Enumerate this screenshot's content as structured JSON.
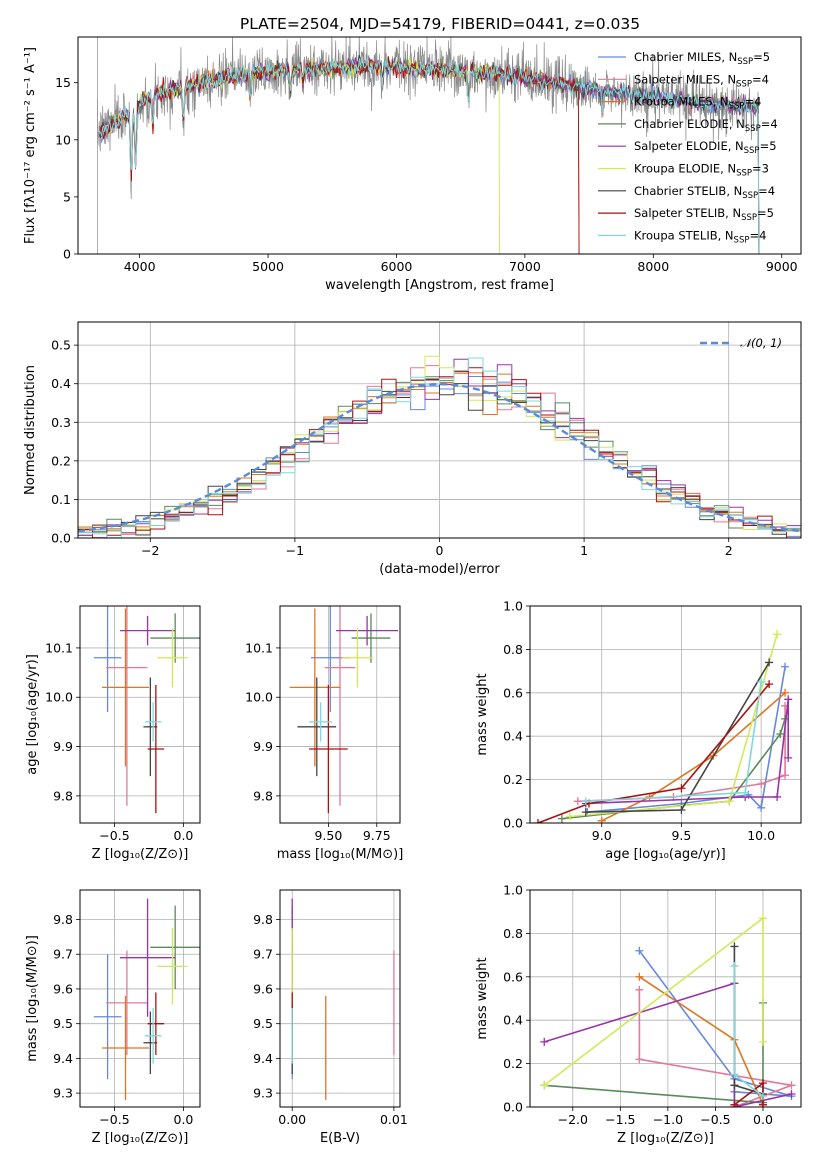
{
  "figure_title": "PLATE=2504, MJD=54179, FIBERID=0441, z=0.035",
  "palette": [
    "#6688dd",
    "#e37898",
    "#e07520",
    "#5a8a5a",
    "#9933aa",
    "#d3e858",
    "#444444",
    "#aa1111",
    "#7fd8dc"
  ],
  "chart_data": [
    {
      "type": "line",
      "panel": "spectrum",
      "xlabel": "wavelength [Angstrom, rest frame]",
      "ylabel": "Flux [fλ10⁻¹⁷ erg cm⁻² s⁻¹ A⁻¹]",
      "xlim": [
        3520,
        9150
      ],
      "ylim": [
        0,
        19
      ],
      "xticks": [
        "4000",
        "5000",
        "6000",
        "7000",
        "8000",
        "9000"
      ],
      "yticks": [
        "0",
        "5",
        "10",
        "15"
      ],
      "data_outline": {
        "x": [
          3670,
          3800,
          3950,
          4100,
          4300,
          4500,
          4700,
          5000,
          5300,
          5600,
          5900,
          6200,
          6500,
          6800,
          7000,
          7300,
          7600,
          8000,
          8400,
          8800
        ],
        "y": [
          10.5,
          11.5,
          12.5,
          14.0,
          14.5,
          15.0,
          15.5,
          16.0,
          16.2,
          16.4,
          16.5,
          16.2,
          16.0,
          15.8,
          15.4,
          14.9,
          14.3,
          13.8,
          13.2,
          12.8
        ]
      },
      "legend": [
        {
          "name": "Chabrier MILES, N_SSP=5",
          "base": "Chabrier MILES, N",
          "sub": "SSP",
          "tail": "=5"
        },
        {
          "name": "Salpeter MILES, N_SSP=4",
          "base": "Salpeter MILES, N",
          "sub": "SSP",
          "tail": "=4"
        },
        {
          "name": "Kroupa MILES, N_SSP=4",
          "base": "Kroupa MILES, N",
          "sub": "SSP",
          "tail": "=4"
        },
        {
          "name": "Chabrier ELODIE, N_SSP=4",
          "base": "Chabrier ELODIE, N",
          "sub": "SSP",
          "tail": "=4"
        },
        {
          "name": "Salpeter ELODIE, N_SSP=5",
          "base": "Salpeter ELODIE, N",
          "sub": "SSP",
          "tail": "=5"
        },
        {
          "name": "Kroupa ELODIE, N_SSP=3",
          "base": "Kroupa ELODIE, N",
          "sub": "SSP",
          "tail": "=3"
        },
        {
          "name": "Chabrier STELIB, N_SSP=4",
          "base": "Chabrier STELIB, N",
          "sub": "SSP",
          "tail": "=4"
        },
        {
          "name": "Salpeter STELIB, N_SSP=5",
          "base": "Salpeter STELIB, N",
          "sub": "SSP",
          "tail": "=5"
        },
        {
          "name": "Kroupa STELIB, N_SSP=4",
          "base": "Kroupa STELIB, N",
          "sub": "SSP",
          "tail": "=4"
        }
      ],
      "grid": false,
      "legend_position": "top-right"
    },
    {
      "type": "histogram",
      "panel": "residuals",
      "xlabel": "(data-model)/error",
      "ylabel": "Normed distribution",
      "xlim": [
        -2.5,
        2.5
      ],
      "ylim": [
        0,
        0.56
      ],
      "xticks": [
        "−2",
        "−1",
        "0",
        "1",
        "2"
      ],
      "yticks": [
        "0.0",
        "0.1",
        "0.2",
        "0.3",
        "0.4",
        "0.5"
      ],
      "bin_width": 0.1,
      "reference_curve": "N(0,1)",
      "reference_label": "𝒩(0, 1)",
      "grid": true,
      "legend_position": "top-right"
    },
    {
      "type": "errorbar",
      "panel": "age-vs-Z",
      "xlabel": "Z [log₁₀(Z/Z⊙)]",
      "ylabel": "age  [log₁₀(age/yr)]",
      "xlim": [
        -0.75,
        0.12
      ],
      "ylim": [
        9.745,
        10.185
      ],
      "xticks": [
        "−0.5",
        "0.0"
      ],
      "yticks": [
        "9.8",
        "9.9",
        "10.0",
        "10.1"
      ],
      "points": [
        {
          "x": -0.55,
          "xerr": 0.1,
          "y": 10.08,
          "yerr": 0.11
        },
        {
          "x": -0.41,
          "xerr": 0.15,
          "y": 10.06,
          "yerr": 0.28
        },
        {
          "x": -0.42,
          "xerr": 0.17,
          "y": 10.02,
          "yerr": 0.16
        },
        {
          "x": -0.06,
          "xerr": 0.18,
          "y": 10.12,
          "yerr": 0.05
        },
        {
          "x": -0.26,
          "xerr": 0.2,
          "y": 10.135,
          "yerr": 0.03
        },
        {
          "x": -0.08,
          "xerr": 0.11,
          "y": 10.08,
          "yerr": 0.06
        },
        {
          "x": -0.24,
          "xerr": 0.05,
          "y": 9.94,
          "yerr": 0.1
        },
        {
          "x": -0.2,
          "xerr": 0.06,
          "y": 9.895,
          "yerr": 0.13
        },
        {
          "x": -0.22,
          "xerr": 0.06,
          "y": 9.95,
          "yerr": 0.04
        }
      ],
      "grid": true
    },
    {
      "type": "errorbar",
      "panel": "age-vs-mass",
      "xlabel": "mass [log₁₀(M/M⊙)]",
      "ylabel": "",
      "xlim": [
        9.25,
        9.87
      ],
      "ylim": [
        9.745,
        10.185
      ],
      "xticks": [
        "9.50",
        "9.75"
      ],
      "yticks": [
        "9.8",
        "9.9",
        "10.0",
        "10.1"
      ],
      "points": [
        {
          "x": 9.51,
          "xerr": 0.1,
          "y": 10.08,
          "yerr": 0.11
        },
        {
          "x": 9.56,
          "xerr": 0.08,
          "y": 10.06,
          "yerr": 0.28
        },
        {
          "x": 9.43,
          "xerr": 0.13,
          "y": 10.02,
          "yerr": 0.16
        },
        {
          "x": 9.72,
          "xerr": 0.1,
          "y": 10.12,
          "yerr": 0.05
        },
        {
          "x": 9.7,
          "xerr": 0.16,
          "y": 10.135,
          "yerr": 0.03
        },
        {
          "x": 9.65,
          "xerr": 0.08,
          "y": 10.08,
          "yerr": 0.06
        },
        {
          "x": 9.44,
          "xerr": 0.1,
          "y": 9.94,
          "yerr": 0.1
        },
        {
          "x": 9.5,
          "xerr": 0.1,
          "y": 9.895,
          "yerr": 0.13
        },
        {
          "x": 9.46,
          "xerr": 0.06,
          "y": 9.95,
          "yerr": 0.04
        }
      ],
      "grid": true
    },
    {
      "type": "line",
      "panel": "mass-weight-vs-age",
      "xlabel": "age  [log₁₀(age/yr)]",
      "ylabel": "mass weight",
      "xlim": [
        8.55,
        10.25
      ],
      "ylim": [
        0,
        1
      ],
      "xticks": [
        "9.0",
        "9.5",
        "10.0"
      ],
      "yticks": [
        "0.0",
        "0.2",
        "0.4",
        "0.6",
        "0.8",
        "1.0"
      ],
      "series": [
        {
          "x": [
            8.91,
            9.5,
            9.92,
            10.0,
            10.15
          ],
          "y": [
            0.05,
            0.09,
            0.13,
            0.07,
            0.72
          ]
        },
        {
          "x": [
            8.85,
            9.45,
            10.0,
            10.15,
            10.15
          ],
          "y": [
            0.1,
            0.12,
            0.18,
            0.22,
            0.54
          ]
        },
        {
          "x": [
            9.0,
            9.3,
            9.7,
            10.15
          ],
          "y": [
            0.01,
            0.12,
            0.31,
            0.6
          ]
        },
        {
          "x": [
            8.75,
            9.5,
            9.8,
            10.12,
            10.15
          ],
          "y": [
            0.02,
            0.08,
            0.1,
            0.41,
            0.48
          ]
        },
        {
          "x": [
            8.9,
            9.9,
            10.1,
            10.17,
            10.17
          ],
          "y": [
            0.09,
            0.12,
            0.12,
            0.57,
            0.3
          ]
        },
        {
          "x": [
            8.8,
            9.8,
            10.1
          ],
          "y": [
            0.03,
            0.1,
            0.87
          ]
        },
        {
          "x": [
            8.9,
            9.5,
            10.05
          ],
          "y": [
            0.05,
            0.06,
            0.74
          ]
        },
        {
          "x": [
            8.6,
            8.92,
            9.5,
            10.05
          ],
          "y": [
            0.0,
            0.09,
            0.16,
            0.64
          ]
        },
        {
          "x": [
            8.9,
            9.9,
            10.0
          ],
          "y": [
            0.1,
            0.14,
            0.65
          ]
        }
      ],
      "grid": true
    },
    {
      "type": "errorbar",
      "panel": "mass-vs-Z",
      "xlabel": "Z [log₁₀(Z/Z⊙)]",
      "ylabel": "mass [log₁₀(M/M⊙)]",
      "xlim": [
        -0.75,
        0.12
      ],
      "ylim": [
        9.26,
        9.885
      ],
      "xticks": [
        "−0.5",
        "0.0"
      ],
      "yticks": [
        "9.3",
        "9.4",
        "9.5",
        "9.6",
        "9.7",
        "9.8"
      ],
      "points": [
        {
          "x": -0.55,
          "xerr": 0.1,
          "y": 9.52,
          "yerr": 0.18
        },
        {
          "x": -0.41,
          "xerr": 0.15,
          "y": 9.56,
          "yerr": 0.15
        },
        {
          "x": -0.42,
          "xerr": 0.17,
          "y": 9.43,
          "yerr": 0.15
        },
        {
          "x": -0.06,
          "xerr": 0.18,
          "y": 9.72,
          "yerr": 0.12
        },
        {
          "x": -0.26,
          "xerr": 0.2,
          "y": 9.69,
          "yerr": 0.17
        },
        {
          "x": -0.08,
          "xerr": 0.11,
          "y": 9.665,
          "yerr": 0.11
        },
        {
          "x": -0.24,
          "xerr": 0.05,
          "y": 9.445,
          "yerr": 0.09
        },
        {
          "x": -0.2,
          "xerr": 0.06,
          "y": 9.5,
          "yerr": 0.09
        },
        {
          "x": -0.22,
          "xerr": 0.06,
          "y": 9.465,
          "yerr": 0.08
        }
      ],
      "grid": true
    },
    {
      "type": "errorbar",
      "panel": "mass-vs-EBV",
      "xlabel": "E(B-V)",
      "ylabel": "",
      "xlim": [
        -0.0012,
        0.0106
      ],
      "ylim": [
        9.26,
        9.885
      ],
      "xticks": [
        "0.00",
        "0.01"
      ],
      "yticks": [
        "9.3",
        "9.4",
        "9.5",
        "9.6",
        "9.7",
        "9.8"
      ],
      "points": [
        {
          "x": 0.0,
          "y": 9.52,
          "yerr": 0.18
        },
        {
          "x": 0.01,
          "y": 9.56,
          "yerr": 0.15
        },
        {
          "x": 0.0033,
          "y": 9.43,
          "yerr": 0.15
        },
        {
          "x": 0.0,
          "y": 9.72,
          "yerr": 0.12
        },
        {
          "x": 0.0,
          "y": 9.69,
          "yerr": 0.17
        },
        {
          "x": 0.0,
          "y": 9.665,
          "yerr": 0.11
        },
        {
          "x": 0.0,
          "y": 9.445,
          "yerr": 0.09
        },
        {
          "x": 0.0,
          "y": 9.5,
          "yerr": 0.09
        },
        {
          "x": 0.0,
          "y": 9.465,
          "yerr": 0.08
        }
      ],
      "grid": true
    },
    {
      "type": "line",
      "panel": "mass-weight-vs-Z",
      "xlabel": "Z [log₁₀(Z/Z⊙)]",
      "ylabel": "mass weight",
      "xlim": [
        -2.45,
        0.4
      ],
      "ylim": [
        0,
        1
      ],
      "xticks": [
        "−2.0",
        "−1.5",
        "−1.0",
        "−0.5",
        "0.0"
      ],
      "yticks": [
        "0.0",
        "0.2",
        "0.4",
        "0.6",
        "0.8",
        "1.0"
      ],
      "series": [
        {
          "x": [
            -1.3,
            -0.3,
            0.3,
            -0.3,
            -0.3
          ],
          "y": [
            0.72,
            0.13,
            0.05,
            0.07,
            0.01
          ]
        },
        {
          "x": [
            -1.3,
            -1.3,
            0.3,
            -0.3
          ],
          "y": [
            0.54,
            0.22,
            0.1,
            0.0
          ]
        },
        {
          "x": [
            -1.3,
            -0.3,
            0.0
          ],
          "y": [
            0.6,
            0.31,
            0.01
          ]
        },
        {
          "x": [
            -2.3,
            0.0,
            0.0
          ],
          "y": [
            0.1,
            0.02,
            0.48
          ]
        },
        {
          "x": [
            -2.3,
            -0.3,
            -0.3,
            0.3
          ],
          "y": [
            0.3,
            0.57,
            0.0,
            0.06
          ]
        },
        {
          "x": [
            -2.3,
            0.0,
            0.0
          ],
          "y": [
            0.1,
            0.87,
            0.3
          ]
        },
        {
          "x": [
            -0.3,
            -0.3,
            0.0
          ],
          "y": [
            0.74,
            0.1,
            0.06
          ]
        },
        {
          "x": [
            -0.3,
            0.0,
            0.0
          ],
          "y": [
            0.01,
            0.11,
            0.01
          ]
        },
        {
          "x": [
            -0.3,
            -0.3,
            0.0
          ],
          "y": [
            0.65,
            0.15,
            0.05
          ]
        }
      ],
      "grid": true
    }
  ]
}
